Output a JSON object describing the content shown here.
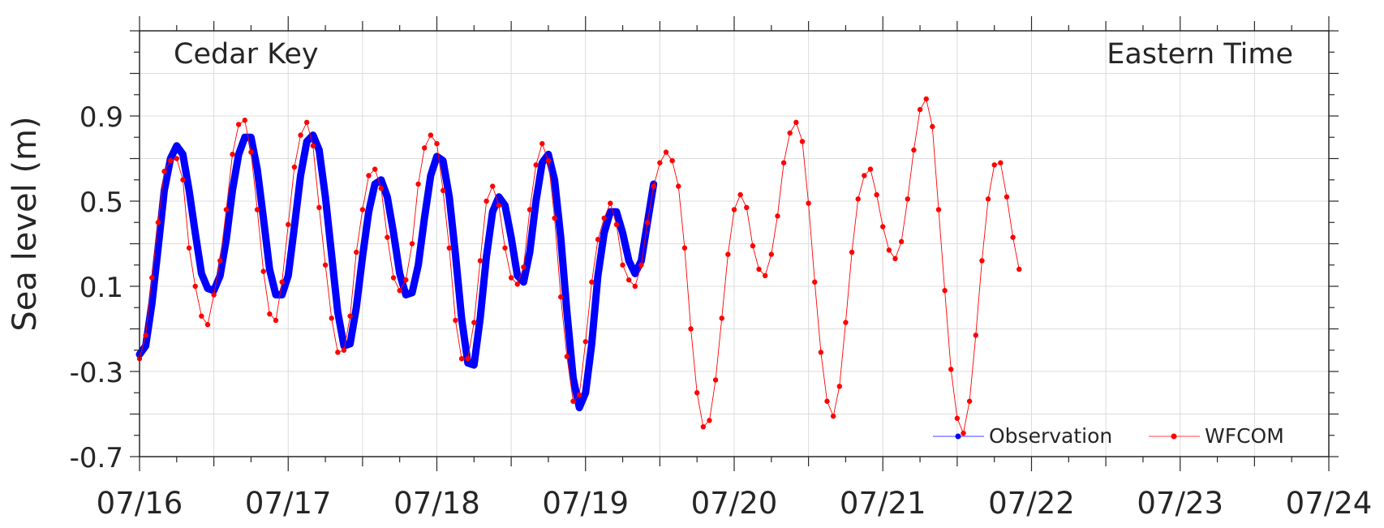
{
  "chart_data": {
    "type": "line",
    "station": "Cedar Key",
    "time_zone": "Eastern Time",
    "ylabel": "Sea level (m)",
    "xlabel": "",
    "ylim": [
      -0.7,
      1.3
    ],
    "yticks": [
      -0.7,
      -0.3,
      0.1,
      0.5,
      0.9
    ],
    "ytick_labels": [
      "-0.7",
      "-0.3",
      "0.1",
      "0.5",
      "0.9"
    ],
    "xlim": [
      "2024-07-16",
      "2024-07-24"
    ],
    "xticks": [
      "2024-07-16",
      "2024-07-17",
      "2024-07-18",
      "2024-07-19",
      "2024-07-20",
      "2024-07-21",
      "2024-07-22",
      "2024-07-23",
      "2024-07-24"
    ],
    "xtick_labels": [
      "07/16",
      "07/17",
      "07/18",
      "07/19",
      "07/20",
      "07/21",
      "07/22",
      "07/23",
      "07/24"
    ],
    "grid": true,
    "legend_position": "bottom-right",
    "series": [
      {
        "name": "Observation",
        "color": "#0000ff",
        "marker": "dot",
        "points": [
          [
            "2024-07-16 00:00",
            -0.22
          ],
          [
            "2024-07-16 01:00",
            -0.18
          ],
          [
            "2024-07-16 02:00",
            0.02
          ],
          [
            "2024-07-16 03:00",
            0.28
          ],
          [
            "2024-07-16 04:00",
            0.55
          ],
          [
            "2024-07-16 05:00",
            0.7
          ],
          [
            "2024-07-16 06:00",
            0.76
          ],
          [
            "2024-07-16 07:00",
            0.72
          ],
          [
            "2024-07-16 08:00",
            0.55
          ],
          [
            "2024-07-16 09:00",
            0.35
          ],
          [
            "2024-07-16 10:00",
            0.16
          ],
          [
            "2024-07-16 11:00",
            0.09
          ],
          [
            "2024-07-16 12:00",
            0.08
          ],
          [
            "2024-07-16 13:00",
            0.15
          ],
          [
            "2024-07-16 14:00",
            0.32
          ],
          [
            "2024-07-16 15:00",
            0.55
          ],
          [
            "2024-07-16 16:00",
            0.72
          ],
          [
            "2024-07-16 17:00",
            0.8
          ],
          [
            "2024-07-16 18:00",
            0.8
          ],
          [
            "2024-07-16 19:00",
            0.65
          ],
          [
            "2024-07-16 20:00",
            0.42
          ],
          [
            "2024-07-16 21:00",
            0.18
          ],
          [
            "2024-07-16 22:00",
            0.06
          ],
          [
            "2024-07-16 23:00",
            0.06
          ],
          [
            "2024-07-17 00:00",
            0.15
          ],
          [
            "2024-07-17 01:00",
            0.38
          ],
          [
            "2024-07-17 02:00",
            0.62
          ],
          [
            "2024-07-17 03:00",
            0.78
          ],
          [
            "2024-07-17 04:00",
            0.81
          ],
          [
            "2024-07-17 05:00",
            0.74
          ],
          [
            "2024-07-17 06:00",
            0.52
          ],
          [
            "2024-07-17 07:00",
            0.25
          ],
          [
            "2024-07-17 08:00",
            -0.02
          ],
          [
            "2024-07-17 09:00",
            -0.18
          ],
          [
            "2024-07-17 10:00",
            -0.17
          ],
          [
            "2024-07-17 11:00",
            0.0
          ],
          [
            "2024-07-17 12:00",
            0.24
          ],
          [
            "2024-07-17 13:00",
            0.45
          ],
          [
            "2024-07-17 14:00",
            0.58
          ],
          [
            "2024-07-17 15:00",
            0.6
          ],
          [
            "2024-07-17 16:00",
            0.52
          ],
          [
            "2024-07-17 17:00",
            0.35
          ],
          [
            "2024-07-17 18:00",
            0.16
          ],
          [
            "2024-07-17 19:00",
            0.06
          ],
          [
            "2024-07-17 20:00",
            0.07
          ],
          [
            "2024-07-17 21:00",
            0.2
          ],
          [
            "2024-07-17 22:00",
            0.42
          ],
          [
            "2024-07-17 23:00",
            0.62
          ],
          [
            "2024-07-18 00:00",
            0.71
          ],
          [
            "2024-07-18 01:00",
            0.69
          ],
          [
            "2024-07-18 02:00",
            0.52
          ],
          [
            "2024-07-18 03:00",
            0.25
          ],
          [
            "2024-07-18 04:00",
            -0.05
          ],
          [
            "2024-07-18 05:00",
            -0.26
          ],
          [
            "2024-07-18 06:00",
            -0.27
          ],
          [
            "2024-07-18 07:00",
            -0.05
          ],
          [
            "2024-07-18 08:00",
            0.24
          ],
          [
            "2024-07-18 09:00",
            0.45
          ],
          [
            "2024-07-18 10:00",
            0.52
          ],
          [
            "2024-07-18 11:00",
            0.48
          ],
          [
            "2024-07-18 12:00",
            0.33
          ],
          [
            "2024-07-18 13:00",
            0.15
          ],
          [
            "2024-07-18 14:00",
            0.12
          ],
          [
            "2024-07-18 15:00",
            0.26
          ],
          [
            "2024-07-18 16:00",
            0.5
          ],
          [
            "2024-07-18 17:00",
            0.68
          ],
          [
            "2024-07-18 18:00",
            0.72
          ],
          [
            "2024-07-18 19:00",
            0.6
          ],
          [
            "2024-07-18 20:00",
            0.33
          ],
          [
            "2024-07-18 21:00",
            -0.02
          ],
          [
            "2024-07-18 22:00",
            -0.33
          ],
          [
            "2024-07-18 23:00",
            -0.47
          ],
          [
            "2024-07-19 00:00",
            -0.4
          ],
          [
            "2024-07-19 01:00",
            -0.17
          ],
          [
            "2024-07-19 02:00",
            0.15
          ],
          [
            "2024-07-19 03:00",
            0.35
          ],
          [
            "2024-07-19 04:00",
            0.45
          ],
          [
            "2024-07-19 05:00",
            0.45
          ],
          [
            "2024-07-19 06:00",
            0.35
          ],
          [
            "2024-07-19 07:00",
            0.22
          ],
          [
            "2024-07-19 08:00",
            0.16
          ],
          [
            "2024-07-19 09:00",
            0.22
          ],
          [
            "2024-07-19 10:00",
            0.4
          ],
          [
            "2024-07-19 11:00",
            0.58
          ]
        ]
      },
      {
        "name": "WFCOM",
        "color": "#ff0000",
        "marker": "dot",
        "points": [
          [
            "2024-07-16 00:00",
            -0.24
          ],
          [
            "2024-07-16 01:00",
            -0.13
          ],
          [
            "2024-07-16 02:00",
            0.14
          ],
          [
            "2024-07-16 03:00",
            0.4
          ],
          [
            "2024-07-16 04:00",
            0.64
          ],
          [
            "2024-07-16 05:00",
            0.69
          ],
          [
            "2024-07-16 06:00",
            0.7
          ],
          [
            "2024-07-16 07:00",
            0.6
          ],
          [
            "2024-07-16 08:00",
            0.28
          ],
          [
            "2024-07-16 09:00",
            0.1
          ],
          [
            "2024-07-16 10:00",
            -0.04
          ],
          [
            "2024-07-16 11:00",
            -0.08
          ],
          [
            "2024-07-16 12:00",
            0.06
          ],
          [
            "2024-07-16 13:00",
            0.22
          ],
          [
            "2024-07-16 14:00",
            0.46
          ],
          [
            "2024-07-16 15:00",
            0.72
          ],
          [
            "2024-07-16 16:00",
            0.86
          ],
          [
            "2024-07-16 17:00",
            0.88
          ],
          [
            "2024-07-16 18:00",
            0.73
          ],
          [
            "2024-07-16 19:00",
            0.46
          ],
          [
            "2024-07-16 20:00",
            0.17
          ],
          [
            "2024-07-16 21:00",
            -0.03
          ],
          [
            "2024-07-16 22:00",
            -0.06
          ],
          [
            "2024-07-16 23:00",
            0.12
          ],
          [
            "2024-07-17 00:00",
            0.39
          ],
          [
            "2024-07-17 01:00",
            0.66
          ],
          [
            "2024-07-17 02:00",
            0.81
          ],
          [
            "2024-07-17 03:00",
            0.87
          ],
          [
            "2024-07-17 04:00",
            0.76
          ],
          [
            "2024-07-17 05:00",
            0.47
          ],
          [
            "2024-07-17 06:00",
            0.2
          ],
          [
            "2024-07-17 07:00",
            -0.05
          ],
          [
            "2024-07-17 08:00",
            -0.21
          ],
          [
            "2024-07-17 09:00",
            -0.2
          ],
          [
            "2024-07-17 10:00",
            -0.04
          ],
          [
            "2024-07-17 11:00",
            0.26
          ],
          [
            "2024-07-17 12:00",
            0.46
          ],
          [
            "2024-07-17 13:00",
            0.62
          ],
          [
            "2024-07-17 14:00",
            0.65
          ],
          [
            "2024-07-17 15:00",
            0.56
          ],
          [
            "2024-07-17 16:00",
            0.33
          ],
          [
            "2024-07-17 17:00",
            0.14
          ],
          [
            "2024-07-17 18:00",
            0.08
          ],
          [
            "2024-07-17 19:00",
            0.13
          ],
          [
            "2024-07-17 20:00",
            0.3
          ],
          [
            "2024-07-17 21:00",
            0.58
          ],
          [
            "2024-07-17 22:00",
            0.75
          ],
          [
            "2024-07-17 23:00",
            0.81
          ],
          [
            "2024-07-18 00:00",
            0.77
          ],
          [
            "2024-07-18 01:00",
            0.55
          ],
          [
            "2024-07-18 02:00",
            0.28
          ],
          [
            "2024-07-18 03:00",
            -0.06
          ],
          [
            "2024-07-18 04:00",
            -0.24
          ],
          [
            "2024-07-18 05:00",
            -0.24
          ],
          [
            "2024-07-18 06:00",
            -0.07
          ],
          [
            "2024-07-18 07:00",
            0.22
          ],
          [
            "2024-07-18 08:00",
            0.5
          ],
          [
            "2024-07-18 09:00",
            0.57
          ],
          [
            "2024-07-18 10:00",
            0.48
          ],
          [
            "2024-07-18 11:00",
            0.28
          ],
          [
            "2024-07-18 12:00",
            0.14
          ],
          [
            "2024-07-18 13:00",
            0.11
          ],
          [
            "2024-07-18 14:00",
            0.19
          ],
          [
            "2024-07-18 15:00",
            0.46
          ],
          [
            "2024-07-18 16:00",
            0.67
          ],
          [
            "2024-07-18 17:00",
            0.77
          ],
          [
            "2024-07-18 18:00",
            0.69
          ],
          [
            "2024-07-18 19:00",
            0.42
          ],
          [
            "2024-07-18 20:00",
            0.05
          ],
          [
            "2024-07-18 21:00",
            -0.23
          ],
          [
            "2024-07-18 22:00",
            -0.44
          ],
          [
            "2024-07-18 23:00",
            -0.41
          ],
          [
            "2024-07-19 00:00",
            -0.16
          ],
          [
            "2024-07-19 01:00",
            0.12
          ],
          [
            "2024-07-19 02:00",
            0.32
          ],
          [
            "2024-07-19 03:00",
            0.42
          ],
          [
            "2024-07-19 04:00",
            0.49
          ],
          [
            "2024-07-19 05:00",
            0.39
          ],
          [
            "2024-07-19 06:00",
            0.2
          ],
          [
            "2024-07-19 07:00",
            0.13
          ],
          [
            "2024-07-19 08:00",
            0.1
          ],
          [
            "2024-07-19 09:00",
            0.2
          ],
          [
            "2024-07-19 10:00",
            0.4
          ],
          [
            "2024-07-19 11:00",
            0.57
          ],
          [
            "2024-07-19 12:00",
            0.68
          ],
          [
            "2024-07-19 13:00",
            0.73
          ],
          [
            "2024-07-19 14:00",
            0.69
          ],
          [
            "2024-07-19 15:00",
            0.57
          ],
          [
            "2024-07-19 16:00",
            0.28
          ],
          [
            "2024-07-19 17:00",
            -0.1
          ],
          [
            "2024-07-19 18:00",
            -0.4
          ],
          [
            "2024-07-19 19:00",
            -0.56
          ],
          [
            "2024-07-19 20:00",
            -0.53
          ],
          [
            "2024-07-19 21:00",
            -0.34
          ],
          [
            "2024-07-19 22:00",
            -0.05
          ],
          [
            "2024-07-19 23:00",
            0.25
          ],
          [
            "2024-07-20 00:00",
            0.46
          ],
          [
            "2024-07-20 01:00",
            0.53
          ],
          [
            "2024-07-20 02:00",
            0.47
          ],
          [
            "2024-07-20 03:00",
            0.29
          ],
          [
            "2024-07-20 04:00",
            0.18
          ],
          [
            "2024-07-20 05:00",
            0.15
          ],
          [
            "2024-07-20 06:00",
            0.25
          ],
          [
            "2024-07-20 07:00",
            0.43
          ],
          [
            "2024-07-20 08:00",
            0.68
          ],
          [
            "2024-07-20 09:00",
            0.82
          ],
          [
            "2024-07-20 10:00",
            0.87
          ],
          [
            "2024-07-20 11:00",
            0.78
          ],
          [
            "2024-07-20 12:00",
            0.49
          ],
          [
            "2024-07-20 13:00",
            0.12
          ],
          [
            "2024-07-20 14:00",
            -0.21
          ],
          [
            "2024-07-20 15:00",
            -0.44
          ],
          [
            "2024-07-20 16:00",
            -0.51
          ],
          [
            "2024-07-20 17:00",
            -0.37
          ],
          [
            "2024-07-20 18:00",
            -0.07
          ],
          [
            "2024-07-20 19:00",
            0.26
          ],
          [
            "2024-07-20 20:00",
            0.51
          ],
          [
            "2024-07-20 21:00",
            0.62
          ],
          [
            "2024-07-20 22:00",
            0.65
          ],
          [
            "2024-07-20 23:00",
            0.53
          ],
          [
            "2024-07-21 00:00",
            0.38
          ],
          [
            "2024-07-21 01:00",
            0.27
          ],
          [
            "2024-07-21 02:00",
            0.23
          ],
          [
            "2024-07-21 03:00",
            0.31
          ],
          [
            "2024-07-21 04:00",
            0.51
          ],
          [
            "2024-07-21 05:00",
            0.74
          ],
          [
            "2024-07-21 06:00",
            0.93
          ],
          [
            "2024-07-21 07:00",
            0.98
          ],
          [
            "2024-07-21 08:00",
            0.85
          ],
          [
            "2024-07-21 09:00",
            0.46
          ],
          [
            "2024-07-21 10:00",
            0.08
          ],
          [
            "2024-07-21 11:00",
            -0.29
          ],
          [
            "2024-07-21 12:00",
            -0.52
          ],
          [
            "2024-07-21 13:00",
            -0.59
          ],
          [
            "2024-07-21 14:00",
            -0.44
          ],
          [
            "2024-07-21 15:00",
            -0.13
          ],
          [
            "2024-07-21 16:00",
            0.22
          ],
          [
            "2024-07-21 17:00",
            0.51
          ],
          [
            "2024-07-21 18:00",
            0.67
          ],
          [
            "2024-07-21 19:00",
            0.68
          ],
          [
            "2024-07-21 20:00",
            0.52
          ],
          [
            "2024-07-21 21:00",
            0.33
          ],
          [
            "2024-07-21 22:00",
            0.18
          ]
        ]
      }
    ]
  }
}
